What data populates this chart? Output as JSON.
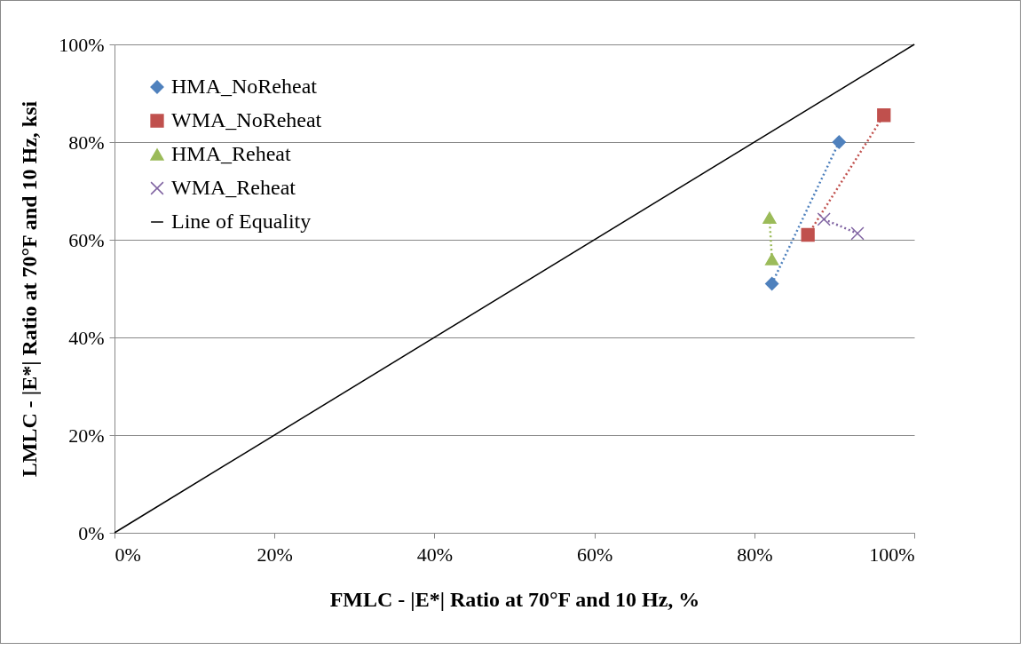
{
  "chart_data": {
    "type": "line",
    "xlabel": "FMLC - |E*| Ratio at 70°F and 10 Hz, %",
    "ylabel": "LMLC - |E*| Ratio at 70°F and 10 Hz, ksi",
    "xlim": [
      0,
      100
    ],
    "ylim": [
      0,
      100
    ],
    "xticks": [
      {
        "value": 0,
        "label": "0%"
      },
      {
        "value": 20,
        "label": "20%"
      },
      {
        "value": 40,
        "label": "40%"
      },
      {
        "value": 60,
        "label": "60%"
      },
      {
        "value": 80,
        "label": "80%"
      },
      {
        "value": 100,
        "label": "100%"
      }
    ],
    "yticks": [
      {
        "value": 0,
        "label": "0%"
      },
      {
        "value": 20,
        "label": "20%"
      },
      {
        "value": 40,
        "label": "40%"
      },
      {
        "value": 60,
        "label": "60%"
      },
      {
        "value": 80,
        "label": "80%"
      },
      {
        "value": 100,
        "label": "100%"
      }
    ],
    "grid": "y",
    "legend": "top left",
    "series": [
      {
        "name": "HMA_NoReheat",
        "color": "#4f81bd",
        "marker": "diamond",
        "line_style": "dotted",
        "x": [
          82.2,
          90.6
        ],
        "values": [
          51,
          80
        ]
      },
      {
        "name": "WMA_NoReheat",
        "color": "#c0504d",
        "marker": "square",
        "line_style": "dotted",
        "x": [
          86.7,
          96.2
        ],
        "values": [
          61,
          85.5
        ]
      },
      {
        "name": "HMA_Reheat",
        "color": "#9bbb59",
        "marker": "triangle",
        "line_style": "dotted",
        "x": [
          81.9,
          82.2
        ],
        "values": [
          64.5,
          56
        ]
      },
      {
        "name": "WMA_Reheat",
        "color": "#8064a2",
        "marker": "cross",
        "line_style": "dotted",
        "x": [
          88.7,
          92.9
        ],
        "values": [
          64.2,
          61.3
        ]
      },
      {
        "name": "Line of Equality",
        "color": "#000000",
        "marker": "none",
        "line_style": "solid",
        "x": [
          0,
          100
        ],
        "values": [
          0,
          100
        ]
      }
    ]
  }
}
